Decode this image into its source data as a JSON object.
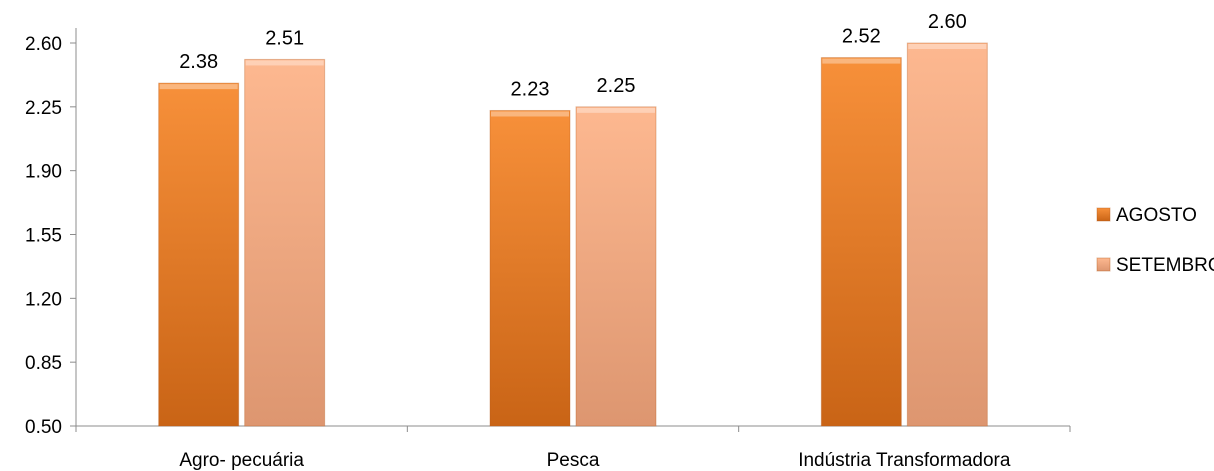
{
  "chart_data": {
    "type": "bar",
    "title": "",
    "xlabel": "",
    "ylabel": "",
    "categories": [
      "Agro- pecuária",
      "Pesca",
      "Indústria Transformadora"
    ],
    "series": [
      {
        "name": "AGOSTO",
        "values": [
          2.38,
          2.23,
          2.52
        ],
        "value_labels": [
          "2.38",
          "2.23",
          "2.52"
        ],
        "color": "#e8751a"
      },
      {
        "name": "SETEMBRO",
        "values": [
          2.51,
          2.25,
          2.6
        ],
        "value_labels": [
          "2.51",
          "2.25",
          "2.60"
        ],
        "color": "#f5a778"
      }
    ],
    "ylim": [
      0.5,
      2.6
    ],
    "yticks": [
      0.5,
      0.85,
      1.2,
      1.55,
      1.9,
      2.25,
      2.6
    ],
    "ytick_labels": [
      "0.50",
      "0.85",
      "1.20",
      "1.55",
      "1.90",
      "2.25",
      "2.60"
    ],
    "grid": false,
    "legend_position": "right"
  }
}
